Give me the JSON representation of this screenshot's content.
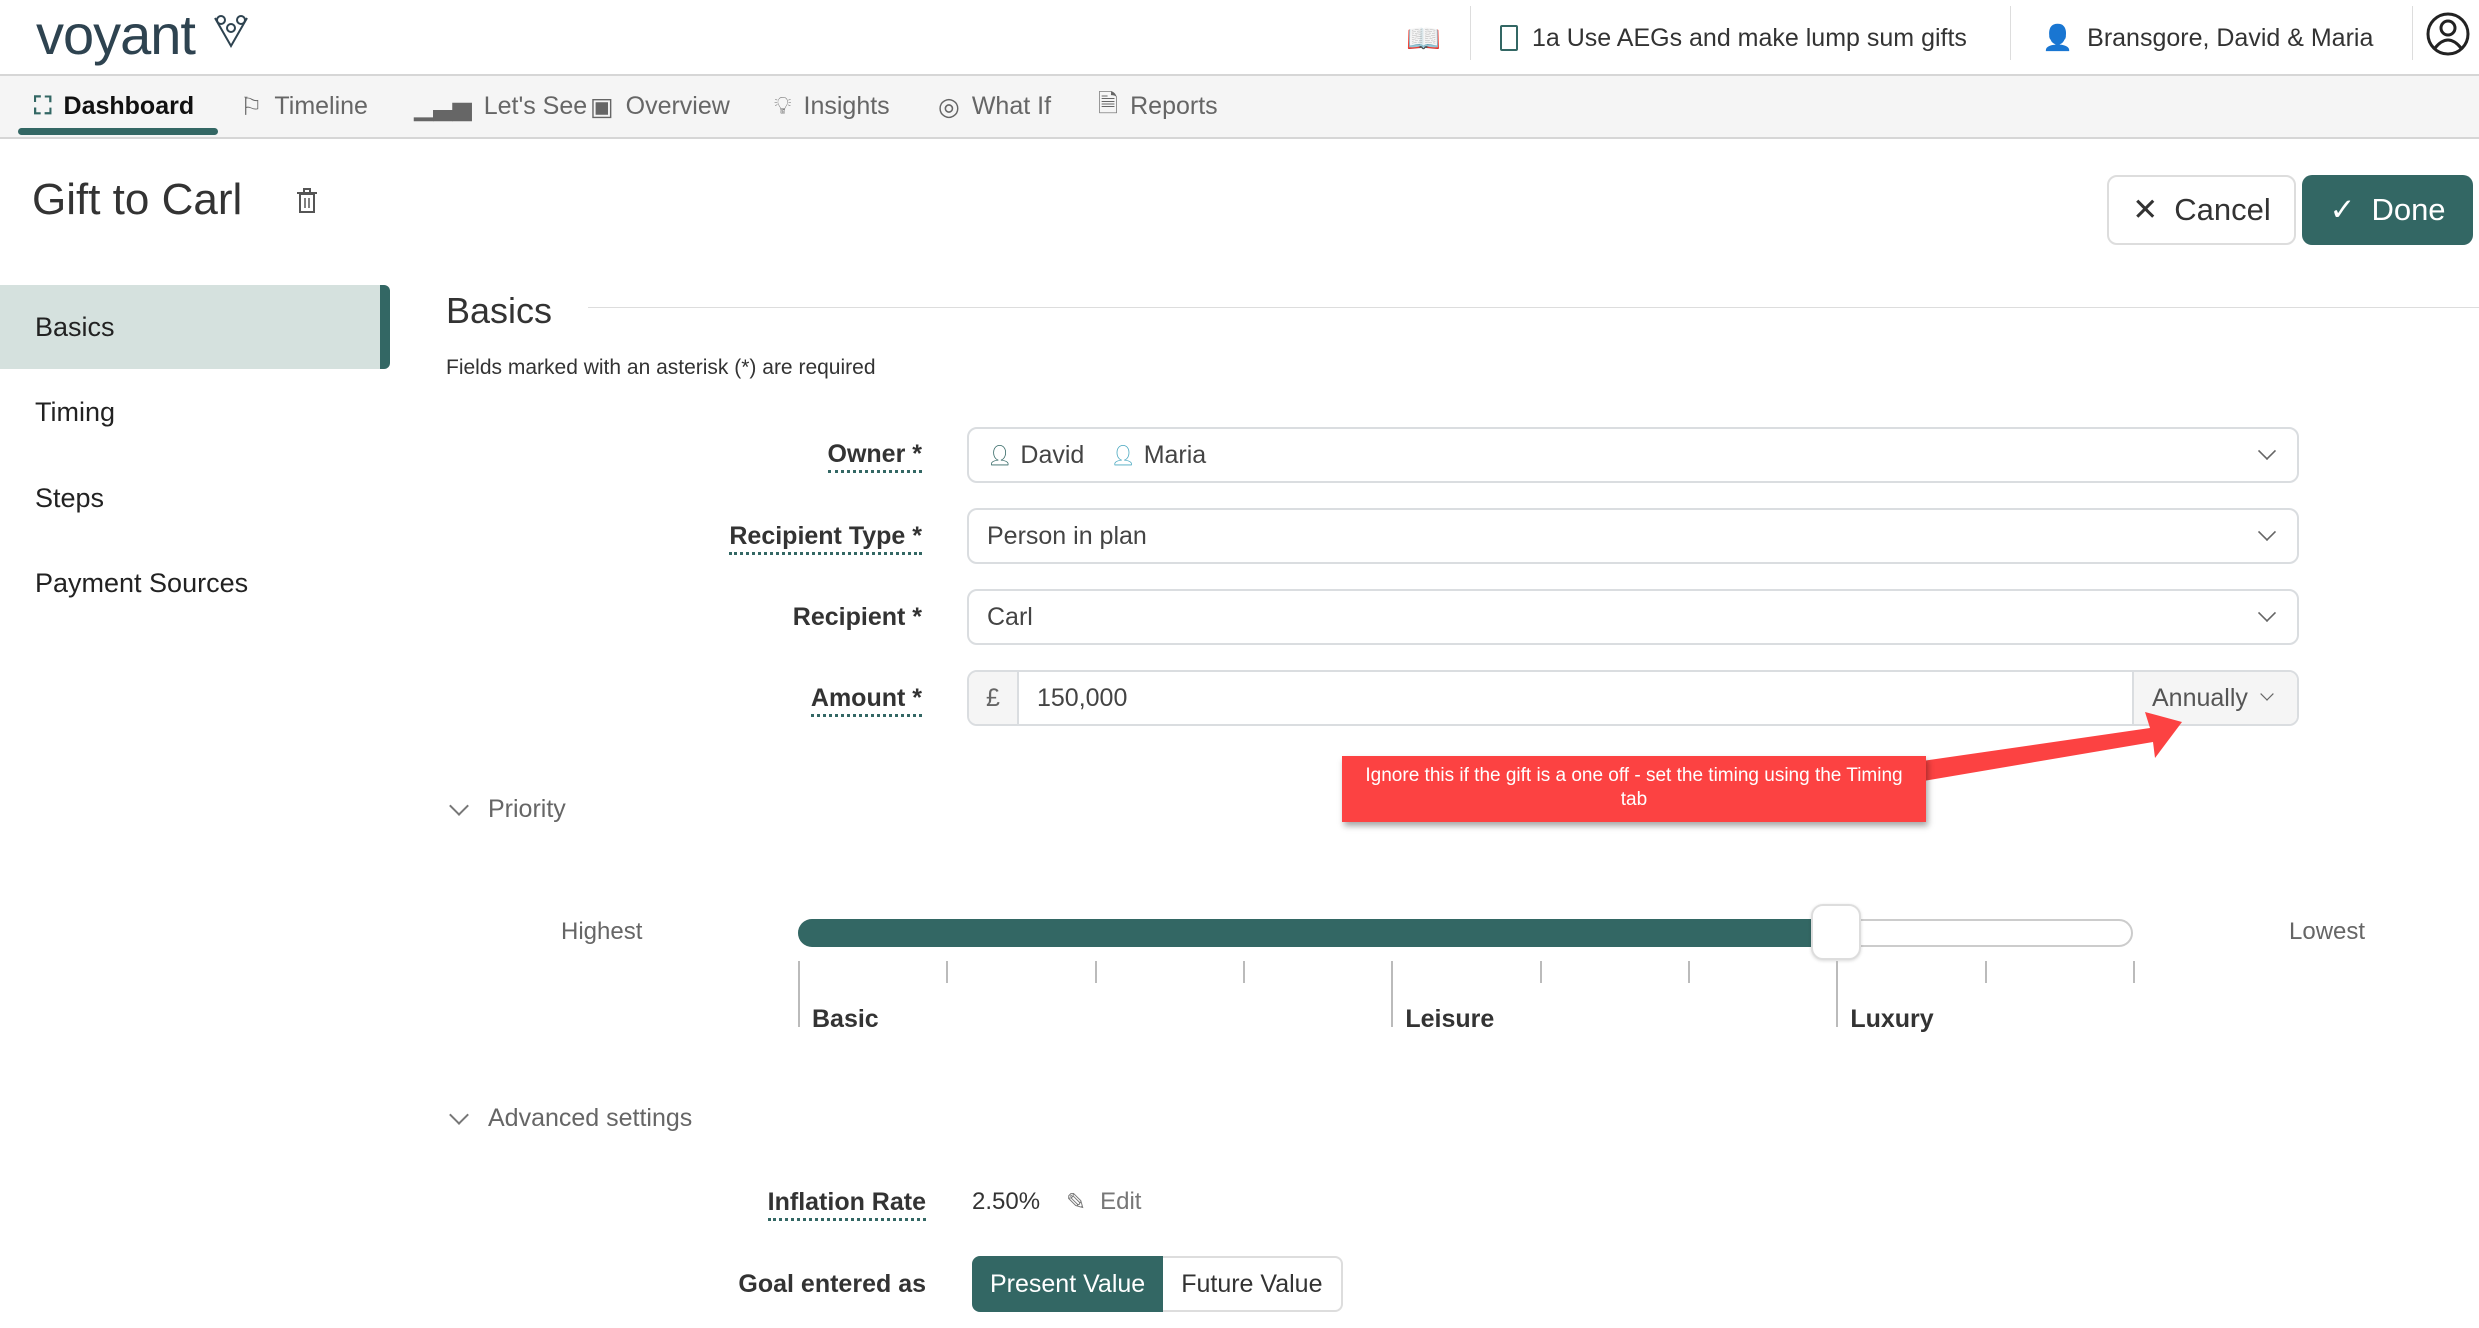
{
  "app": {
    "logo": "voyant"
  },
  "topbar": {
    "plan": "1a Use AEGs and make lump sum gifts",
    "client": "Bransgore, David & Maria"
  },
  "nav": {
    "tabs": [
      {
        "label": "Dashboard",
        "active": true
      },
      {
        "label": "Timeline"
      },
      {
        "label": "Let's See"
      },
      {
        "label": "Overview"
      },
      {
        "label": "Insights"
      },
      {
        "label": "What If"
      },
      {
        "label": "Reports"
      }
    ]
  },
  "page": {
    "title": "Gift to Carl",
    "cancel": "Cancel",
    "done": "Done"
  },
  "sidebar": {
    "items": [
      {
        "label": "Basics",
        "active": true
      },
      {
        "label": "Timing"
      },
      {
        "label": "Steps"
      },
      {
        "label": "Payment Sources"
      }
    ]
  },
  "section": {
    "title": "Basics",
    "note": "Fields marked with an asterisk (*) are required"
  },
  "form": {
    "owner": {
      "label": "Owner *",
      "values": [
        "David",
        "Maria"
      ]
    },
    "recipient_type": {
      "label": "Recipient Type *",
      "value": "Person in plan"
    },
    "recipient": {
      "label": "Recipient *",
      "value": "Carl"
    },
    "amount": {
      "label": "Amount *",
      "currency": "£",
      "value": "150,000",
      "frequency": "Annually"
    }
  },
  "callout": {
    "text": "Ignore this if the gift is a one off - set the timing using the Timing tab",
    "color": "#fc4242"
  },
  "priority": {
    "title": "Priority",
    "highest": "Highest",
    "lowest": "Lowest",
    "labels": [
      "Basic",
      "Leisure",
      "Luxury"
    ],
    "value_step": 7,
    "max_step": 9
  },
  "advanced": {
    "title": "Advanced settings",
    "inflation_label": "Inflation Rate",
    "inflation_value": "2.50%",
    "edit": "Edit",
    "goal_label": "Goal entered as",
    "goal_options": [
      "Present Value",
      "Future Value"
    ],
    "goal_selected": "Present Value"
  },
  "colors": {
    "accent": "#336764"
  }
}
